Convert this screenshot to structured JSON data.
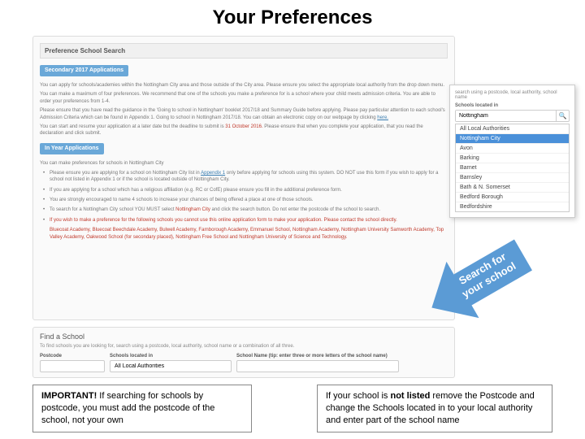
{
  "title": "Your Preferences",
  "panel": {
    "header": "Preference School Search",
    "section1": "Secondary 2017 Applications",
    "p1": "You can apply for schools/academies within the Nottingham City area and those outside of the City area. Please ensure you select the appropriate local authority from the drop down menu.",
    "p2": "You can make a maximum of four preferences. We recommend that one of the schools you make a preference for is a school where your child meets admission criteria. You are able to order your preferences from 1-4.",
    "p3a": "Please ensure that you have read the guidance in the 'Going to school in Nottingham' booklet 2017/18 and Summary Guide before applying. Please pay particular attention to each school's Admission Criteria which can be found in Appendix 1. Going to school in Nottingham 2017/18. You can obtain an electronic copy on our webpage by clicking ",
    "p3link": "here.",
    "p4a": "You can start and resume your application at a later date but the deadline to submit is ",
    "p4red": "31 October 2016.",
    "p4b": " Please ensure that when you complete your application, that you read the declaration and click submit.",
    "section2": "In Year Applications",
    "p5": "You can make preferences for schools in Nottingham City",
    "b1a": "Please ensure you are applying for a school on Nottingham City list in ",
    "b1link": "Appendix 1",
    "b1b": " only before applying for schools using this system. DO NOT use this form if you wish to apply for a school not listed in Appendix 1 or if the school is located outside of Nottingham City.",
    "b2": "If you are applying for a school which has a religious affiliation (e.g. RC or CofE) please ensure you fill in the additional preference form.",
    "b3": "You are strongly encouraged to name 4 schools to increase your chances of being offered a place at one of those schools.",
    "b4a": "To search for a Nottingham City school YOU MUST select ",
    "b4red": "Nottingham City",
    "b4b": " and click the search button. Do not enter the postcode of the school to search.",
    "b5": "If you wish to make a preference for the following schools you cannot use this online application form to make your application. Please contact the school directly.",
    "redlist": "Bluecoat Academy, Bluecoat Beechdale Academy, Bulwell Academy, Farnborough Academy, Emmanuel School, Nottingham Academy, Nottingham University Samworth Academy, Top Valley Academy, Oakwood School (for secondary placed), Nottingham Free School and Nottingham University of Science and Technology."
  },
  "find": {
    "title": "Find a School",
    "desc": "To find schools you are looking for, search using a postcode, local authority, school name or a combination of all three.",
    "pc_label": "Postcode",
    "la_label": "Schools located in",
    "la_value": "All Local Authorities",
    "sn_label": "School Name (tip: enter three or more letters of the school name)"
  },
  "dropdown": {
    "hint": "search using a postcode, local authority, school name",
    "label": "Schools located in",
    "search_value": "Nottingham",
    "items": [
      "All Local Authorities",
      "Nottingham City",
      "Avon",
      "Barking",
      "Barnet",
      "Barnsley",
      "Bath & N. Somerset",
      "Bedford Borough",
      "Bedfordshire"
    ],
    "selected_index": 1
  },
  "arrow": {
    "line1": "Search for",
    "line2": "your school"
  },
  "footer": {
    "left_a": "IMPORTANT! If searching for schools by postcode, you must add the postcode of the school, not your own",
    "left_strong": "IMPORTANT!",
    "right_a": "If your school is not listed remove the Postcode and change the Schools located in to your local authority and enter part of the school name",
    "right_strong": "not listed"
  },
  "colors": {
    "arrow": "#5b9bd5",
    "red": "#c0392b",
    "link": "#3a7db0"
  }
}
